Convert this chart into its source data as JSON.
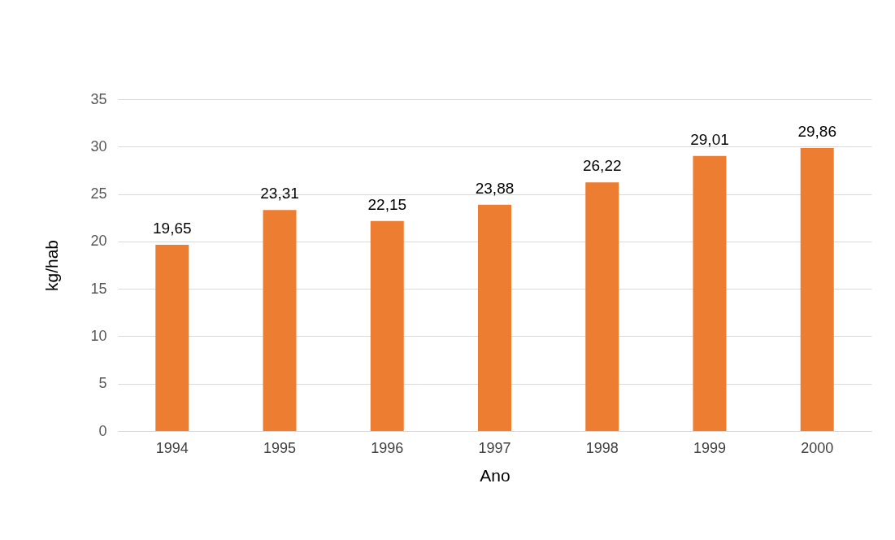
{
  "chart_data": {
    "type": "bar",
    "xlabel": "Ano",
    "ylabel": "kg/hab",
    "categories": [
      "1994",
      "1995",
      "1996",
      "1997",
      "1998",
      "1999",
      "2000"
    ],
    "values": [
      19.65,
      23.31,
      22.15,
      23.88,
      26.22,
      29.01,
      29.86
    ],
    "value_labels": [
      "19,65",
      "23,31",
      "22,15",
      "23,88",
      "26,22",
      "29,01",
      "29,86"
    ],
    "color": "#ed7d31",
    "ylim": [
      0,
      35
    ],
    "yticks": [
      0,
      5,
      10,
      15,
      20,
      25,
      30,
      35
    ],
    "grid": "y"
  }
}
